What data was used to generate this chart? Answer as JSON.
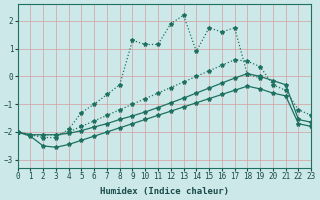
{
  "xlabel": "Humidex (Indice chaleur)",
  "bg_color": "#cce8e8",
  "grid_color": "#b8d8d8",
  "line_color": "#1e7060",
  "xlim": [
    0,
    23
  ],
  "ylim": [
    -3.3,
    2.6
  ],
  "yticks": [
    -3,
    -2,
    -1,
    0,
    1,
    2
  ],
  "xticks": [
    0,
    1,
    2,
    3,
    4,
    5,
    6,
    7,
    8,
    9,
    10,
    11,
    12,
    13,
    14,
    15,
    16,
    17,
    18,
    19,
    20,
    21,
    22,
    23
  ],
  "line_upper_x": [
    0,
    1,
    2,
    3,
    4,
    5,
    6,
    7,
    8,
    9,
    10,
    11,
    12,
    13,
    14,
    15,
    16,
    17,
    18,
    19
  ],
  "line_upper_y": [
    -2.0,
    -2.1,
    -2.2,
    -2.2,
    -1.9,
    -1.3,
    -1.0,
    -0.65,
    -0.3,
    1.3,
    1.15,
    1.15,
    1.9,
    2.2,
    0.9,
    1.75,
    1.6,
    1.75,
    0.07,
    -0.05
  ],
  "line_mid_x": [
    0,
    1,
    2,
    3,
    4,
    5,
    6,
    7,
    8,
    9,
    10,
    11,
    12,
    13,
    14,
    15,
    16,
    17,
    18,
    19,
    20,
    21,
    22,
    23
  ],
  "line_mid_y": [
    -2.0,
    -2.1,
    -2.1,
    -2.1,
    -2.0,
    -1.8,
    -1.6,
    -1.4,
    -1.2,
    -1.0,
    -0.8,
    -0.6,
    -0.4,
    -0.2,
    0.0,
    0.2,
    0.4,
    0.6,
    0.55,
    0.35,
    -0.3,
    -0.5,
    -1.2,
    -1.4
  ],
  "line_low1_x": [
    0,
    1,
    2,
    3,
    4,
    5,
    6,
    7,
    8,
    9,
    10,
    11,
    12,
    13,
    14,
    15,
    16,
    17,
    18,
    19,
    20,
    21,
    22,
    23
  ],
  "line_low1_y": [
    -2.0,
    -2.1,
    -2.1,
    -2.1,
    -2.05,
    -1.95,
    -1.82,
    -1.7,
    -1.55,
    -1.42,
    -1.28,
    -1.12,
    -0.95,
    -0.78,
    -0.6,
    -0.42,
    -0.24,
    -0.06,
    0.1,
    0.0,
    -0.15,
    -0.3,
    -1.55,
    -1.65
  ],
  "line_low2_x": [
    0,
    1,
    2,
    3,
    4,
    5,
    6,
    7,
    8,
    9,
    10,
    11,
    12,
    13,
    14,
    15,
    16,
    17,
    18,
    19,
    20,
    21,
    22,
    23
  ],
  "line_low2_y": [
    -2.0,
    -2.15,
    -2.5,
    -2.55,
    -2.45,
    -2.3,
    -2.15,
    -2.0,
    -1.85,
    -1.7,
    -1.55,
    -1.4,
    -1.25,
    -1.1,
    -0.95,
    -0.8,
    -0.65,
    -0.5,
    -0.35,
    -0.45,
    -0.6,
    -0.7,
    -1.7,
    -1.8
  ]
}
